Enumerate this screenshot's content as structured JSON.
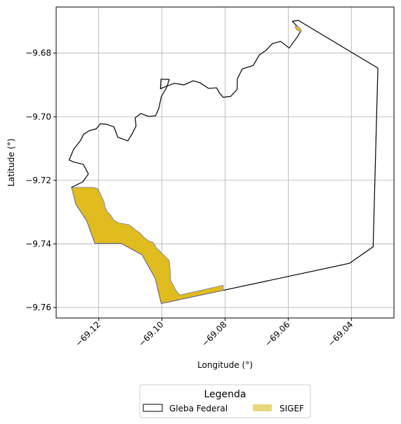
{
  "chart_data": {
    "type": "map",
    "title": "",
    "xlabel": "Longitude (°)",
    "ylabel": "Latitude (°)",
    "xlim": [
      -69.1335,
      -69.0265
    ],
    "ylim": [
      -9.7633,
      -9.6655
    ],
    "xticks": [
      -69.12,
      -69.1,
      -69.08,
      -69.06,
      -69.04
    ],
    "xtick_labels": [
      "−69.12",
      "−69.10",
      "−69.08",
      "−69.06",
      "−69.04"
    ],
    "yticks": [
      -9.68,
      -9.7,
      -9.72,
      -9.74,
      -9.76
    ],
    "ytick_labels": [
      "−9.68",
      "−9.70",
      "−9.72",
      "−9.74",
      "−9.76"
    ],
    "grid": true,
    "legend": {
      "title": "Legenda",
      "placement": "bottom-center",
      "entries": [
        {
          "label": "Gleba Federal",
          "style": "outline",
          "color": "#000000"
        },
        {
          "label": "SIGEF",
          "style": "fill",
          "color": "#e8d87a"
        }
      ]
    },
    "colors": {
      "gleba_outline": "#000000",
      "sigef_fill": "#e0bc1e",
      "sigef_edge": "#6b6bb0",
      "grid": "#b0b0b0"
    },
    "series": [
      {
        "name": "Gleba Federal",
        "kind": "polygon",
        "points": [
          [
            -69.0568,
            -9.6697
          ],
          [
            -69.0316,
            -9.6847
          ],
          [
            -69.0331,
            -9.7409
          ],
          [
            -69.0406,
            -9.7461
          ],
          [
            -69.0806,
            -9.7546
          ],
          [
            -69.1002,
            -9.7587
          ],
          [
            -69.1021,
            -9.7508
          ],
          [
            -69.1063,
            -9.7434
          ],
          [
            -69.1129,
            -9.7398
          ],
          [
            -69.1212,
            -9.7398
          ],
          [
            -69.1238,
            -9.7327
          ],
          [
            -69.1272,
            -9.7276
          ],
          [
            -69.1286,
            -9.7222
          ],
          [
            -69.1251,
            -9.7205
          ],
          [
            -69.1233,
            -9.718
          ],
          [
            -69.1249,
            -9.715
          ],
          [
            -69.1281,
            -9.7142
          ],
          [
            -69.1294,
            -9.7136
          ],
          [
            -69.128,
            -9.7103
          ],
          [
            -69.1258,
            -9.7075
          ],
          [
            -69.1248,
            -9.7055
          ],
          [
            -69.123,
            -9.7044
          ],
          [
            -69.1208,
            -9.7038
          ],
          [
            -69.1195,
            -9.7022
          ],
          [
            -69.1174,
            -9.7024
          ],
          [
            -69.1152,
            -9.7032
          ],
          [
            -69.114,
            -9.7064
          ],
          [
            -69.1108,
            -9.7076
          ],
          [
            -69.1094,
            -9.7053
          ],
          [
            -69.1082,
            -9.7029
          ],
          [
            -69.1085,
            -9.7004
          ],
          [
            -69.1067,
            -9.699
          ],
          [
            -69.1042,
            -9.6999
          ],
          [
            -69.102,
            -9.6997
          ],
          [
            -69.101,
            -9.6974
          ],
          [
            -69.1002,
            -9.6937
          ],
          [
            -69.0985,
            -9.6908
          ],
          [
            -69.0977,
            -9.6883
          ],
          [
            -69.1003,
            -9.6882
          ],
          [
            -69.1005,
            -9.6912
          ],
          [
            -69.0983,
            -9.6903
          ],
          [
            -69.096,
            -9.6895
          ],
          [
            -69.093,
            -9.69
          ],
          [
            -69.0901,
            -9.6887
          ],
          [
            -69.088,
            -9.6893
          ],
          [
            -69.0852,
            -9.6911
          ],
          [
            -69.0827,
            -9.6909
          ],
          [
            -69.0818,
            -9.6925
          ],
          [
            -69.0806,
            -9.6939
          ],
          [
            -69.0782,
            -9.6936
          ],
          [
            -69.0762,
            -9.6914
          ],
          [
            -69.0761,
            -9.6881
          ],
          [
            -69.0746,
            -9.685
          ],
          [
            -69.0711,
            -9.6839
          ],
          [
            -69.0691,
            -9.6805
          ],
          [
            -69.0671,
            -9.6792
          ],
          [
            -69.065,
            -9.677
          ],
          [
            -69.0624,
            -9.6763
          ],
          [
            -69.0597,
            -9.6784
          ],
          [
            -69.0571,
            -9.6749
          ],
          [
            -69.0561,
            -9.6732
          ],
          [
            -69.057,
            -9.6717
          ],
          [
            -69.0587,
            -9.67
          ],
          [
            -69.0568,
            -9.6697
          ]
        ]
      },
      {
        "name": "SIGEF",
        "kind": "polygon",
        "parts": [
          [
            [
              -69.1286,
              -9.7224
            ],
            [
              -69.1272,
              -9.7276
            ],
            [
              -69.1238,
              -9.7327
            ],
            [
              -69.1212,
              -9.7398
            ],
            [
              -69.1129,
              -9.7398
            ],
            [
              -69.1063,
              -9.7434
            ],
            [
              -69.1021,
              -9.7508
            ],
            [
              -69.1002,
              -9.7587
            ],
            [
              -69.0806,
              -9.7546
            ],
            [
              -69.0806,
              -9.753
            ],
            [
              -69.0944,
              -9.7561
            ],
            [
              -69.0957,
              -9.7544
            ],
            [
              -69.0973,
              -9.7513
            ],
            [
              -69.0974,
              -9.748
            ],
            [
              -69.0977,
              -9.7452
            ],
            [
              -69.1002,
              -9.7427
            ],
            [
              -69.1018,
              -9.7412
            ],
            [
              -69.1028,
              -9.7395
            ],
            [
              -69.1041,
              -9.7391
            ],
            [
              -69.1056,
              -9.738
            ],
            [
              -69.1069,
              -9.7366
            ],
            [
              -69.1082,
              -9.7357
            ],
            [
              -69.1091,
              -9.7349
            ],
            [
              -69.1106,
              -9.7339
            ],
            [
              -69.1117,
              -9.7337
            ],
            [
              -69.1137,
              -9.7334
            ],
            [
              -69.1154,
              -9.7324
            ],
            [
              -69.116,
              -9.7312
            ],
            [
              -69.1172,
              -9.73
            ],
            [
              -69.118,
              -9.7286
            ],
            [
              -69.1183,
              -9.7268
            ],
            [
              -69.119,
              -9.7253
            ],
            [
              -69.1197,
              -9.7239
            ],
            [
              -69.1204,
              -9.7226
            ],
            [
              -69.122,
              -9.7222
            ],
            [
              -69.1243,
              -9.7222
            ],
            [
              -69.1264,
              -9.7222
            ],
            [
              -69.1286,
              -9.7224
            ]
          ],
          [
            [
              -69.0576,
              -9.6713
            ],
            [
              -69.0564,
              -9.672
            ],
            [
              -69.0558,
              -9.6729
            ],
            [
              -69.056,
              -9.6734
            ],
            [
              -69.0574,
              -9.6726
            ],
            [
              -69.0578,
              -9.6718
            ],
            [
              -69.0576,
              -9.6713
            ]
          ]
        ]
      }
    ]
  }
}
